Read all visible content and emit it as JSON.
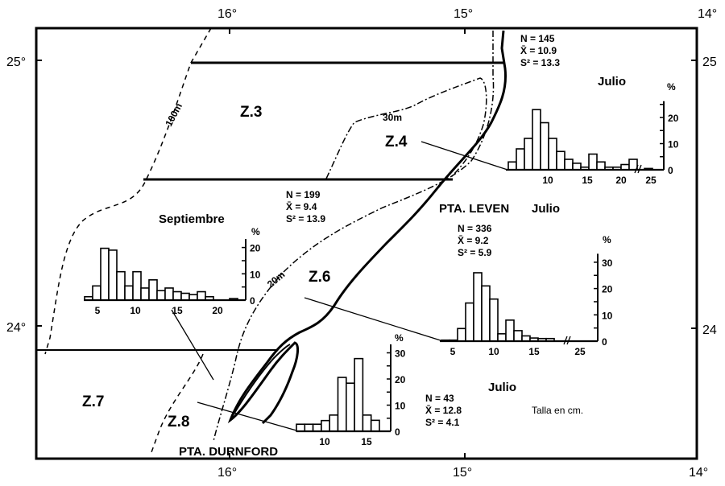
{
  "map": {
    "lon_labels_top": [
      "16°",
      "15°",
      "14°"
    ],
    "lon_labels_bottom": [
      "16°",
      "15°",
      "14°"
    ],
    "lat_labels_left": [
      "25°",
      "24°"
    ],
    "lat_labels_right": [
      "25",
      "24"
    ],
    "zones": [
      "Z.3",
      "Z.4",
      "Z.6",
      "Z.7",
      "Z.8"
    ],
    "places": [
      "PTA. LEVEN",
      "PTA. DURNFORD"
    ],
    "isobaths": [
      "100m",
      "30m",
      "20m"
    ],
    "note": "Talla en cm."
  },
  "chart_data": [
    {
      "type": "bar",
      "zone": "Z.4",
      "title": "Julio",
      "stats": [
        "N = 145",
        "X̄ = 10.9",
        "S² = 13.3"
      ],
      "xlabel": "Talla en cm.",
      "ylabel": "%",
      "categories": [
        6,
        7,
        8,
        9,
        10,
        11,
        12,
        13,
        14,
        15,
        16,
        17,
        18,
        19,
        20,
        21,
        25
      ],
      "values": [
        3,
        8,
        12,
        23,
        18,
        12,
        7,
        4,
        2.5,
        1,
        6,
        3,
        1,
        1,
        2,
        4,
        0.5
      ],
      "xticks": [
        "10",
        "15",
        "20",
        "25"
      ],
      "yticks": [
        "0",
        "10",
        "20"
      ],
      "ylim": [
        0,
        25
      ]
    },
    {
      "type": "bar",
      "zone": "Z.3",
      "title": "Septiembre",
      "stats": [
        "N = 199",
        "X̄ = 9.4",
        "S² = 13.9"
      ],
      "xlabel": "Talla en cm.",
      "ylabel": "%",
      "categories": [
        4,
        5,
        6,
        7,
        8,
        9,
        10,
        11,
        12,
        13,
        14,
        15,
        16,
        17,
        18,
        19,
        20,
        21,
        22
      ],
      "values": [
        1.3,
        5.4,
        19.7,
        19,
        10.8,
        5.4,
        10.8,
        4.6,
        7.7,
        3.6,
        4.6,
        3.2,
        2.6,
        2.1,
        3.2,
        1.3,
        0,
        0,
        0.6
      ],
      "xticks": [
        "5",
        "10",
        "15",
        "20"
      ],
      "yticks": [
        "0",
        "10",
        "20"
      ],
      "ylim": [
        0,
        22
      ]
    },
    {
      "type": "bar",
      "zone": "Z.6",
      "title": "Julio",
      "stats": [
        "N = 336",
        "X̄ = 9.2",
        "S² = 5.9"
      ],
      "xlabel": "Talla en cm.",
      "ylabel": "%",
      "categories": [
        4,
        5,
        6,
        7,
        8,
        9,
        10,
        11,
        12,
        13,
        14,
        15,
        16,
        17
      ],
      "values": [
        0.4,
        0.4,
        4.8,
        14.5,
        26,
        21,
        16,
        2.8,
        8,
        4,
        2,
        1.2,
        1,
        1
      ],
      "xticks": [
        "5",
        "10",
        "15",
        "25"
      ],
      "yticks": [
        "0",
        "10",
        "20",
        "30"
      ],
      "ylim": [
        0,
        32
      ]
    },
    {
      "type": "bar",
      "zone": "Z.8",
      "title": "Julio",
      "stats": [
        "N = 43",
        "X̄ = 12.8",
        "S² = 4.1"
      ],
      "xlabel": "Talla en cm.",
      "ylabel": "%",
      "categories": [
        7,
        8,
        9,
        10,
        11,
        12,
        13,
        14,
        15,
        16
      ],
      "values": [
        2.7,
        2.7,
        2.7,
        4.1,
        6.2,
        20.6,
        18.4,
        27.8,
        6.2,
        4.2
      ],
      "xticks": [
        "10",
        "15"
      ],
      "yticks": [
        "0",
        "10",
        "20",
        "30"
      ],
      "ylim": [
        0,
        32
      ]
    }
  ]
}
